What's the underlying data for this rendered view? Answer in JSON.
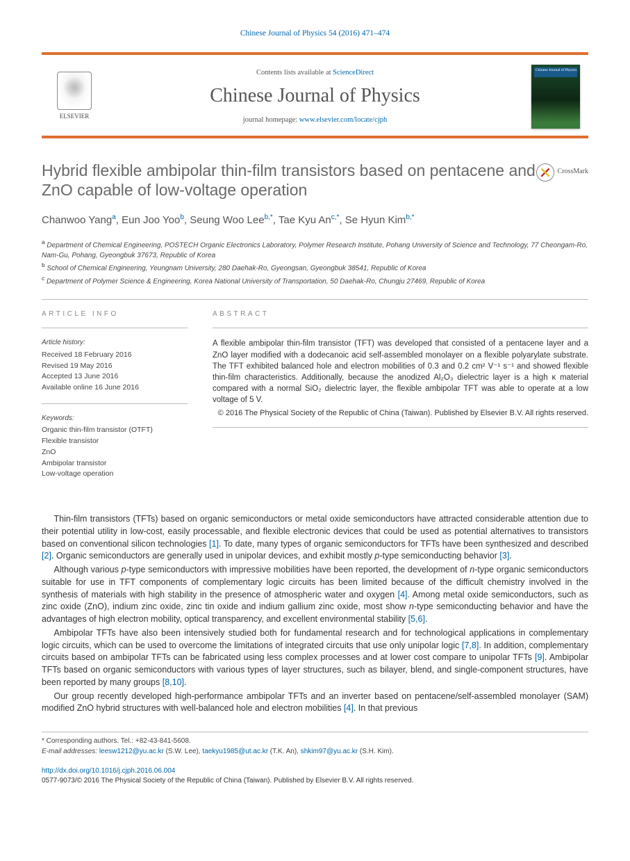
{
  "journal_ref": "Chinese Journal of Physics 54 (2016) 471–474",
  "masthead": {
    "publisher": "ELSEVIER",
    "contents_prefix": "Contents lists available at ",
    "contents_link": "ScienceDirect",
    "journal_name": "Chinese Journal of Physics",
    "homepage_prefix": "journal homepage: ",
    "homepage_url": "www.elsevier.com/locate/cjph",
    "cover_label": "Chinese Journal of Physics"
  },
  "crossmark_label": "CrossMark",
  "title": "Hybrid flexible ambipolar thin-film transistors based on pentacene and ZnO capable of low-voltage operation",
  "authors_html": "Chanwoo Yang<sup>a</sup>, Eun Joo Yoo<sup>b</sup>, Seung Woo Lee<sup>b,*</sup>, Tae Kyu An<sup>c,*</sup>, Se Hyun Kim<sup>b,*</sup>",
  "affiliations": [
    "a Department of Chemical Engineering, POSTECH Organic Electronics Laboratory, Polymer Research Institute, Pohang University of Science and Technology, 77 Cheongam-Ro, Nam-Gu, Pohang, Gyeongbuk 37673, Republic of Korea",
    "b School of Chemical Engineering, Yeungnam University, 280 Daehak-Ro, Gyeongsan, Gyeongbuk 38541, Republic of Korea",
    "c Department of Polymer Science & Engineering, Korea National University of Transportation, 50 Daehak-Ro, Chungju 27469, Republic of Korea"
  ],
  "article_info": {
    "heading": "ARTICLE INFO",
    "history_label": "Article history:",
    "history": [
      "Received 18 February 2016",
      "Revised 19 May 2016",
      "Accepted 13 June 2016",
      "Available online 16 June 2016"
    ],
    "keywords_label": "Keywords:",
    "keywords": [
      "Organic thin-film transistor (OTFT)",
      "Flexible transistor",
      "ZnO",
      "Ambipolar transistor",
      "Low-voltage operation"
    ]
  },
  "abstract": {
    "heading": "ABSTRACT",
    "text": "A flexible ambipolar thin-film transistor (TFT) was developed that consisted of a pentacene layer and a ZnO layer modified with a dodecanoic acid self-assembled monolayer on a flexible polyarylate substrate. The TFT exhibited balanced hole and electron mobilities of 0.3 and 0.2 cm² V⁻¹ s⁻¹ and showed flexible thin-film characteristics. Additionally, because the anodized Al₂O₃ dielectric layer is a high κ material compared with a normal SiO₂ dielectric layer, the flexible ambipolar TFT was able to operate at a low voltage of 5 V.",
    "copyright": "© 2016 The Physical Society of the Republic of China (Taiwan). Published by Elsevier B.V. All rights reserved."
  },
  "body": [
    "Thin-film transistors (TFTs) based on organic semiconductors or metal oxide semiconductors have attracted considerable attention due to their potential utility in low-cost, easily processable, and flexible electronic devices that could be used as potential alternatives to transistors based on conventional silicon technologies [1]. To date, many types of organic semiconductors for TFTs have been synthesized and described [2]. Organic semiconductors are generally used in unipolar devices, and exhibit mostly p-type semiconducting behavior [3].",
    "Although various p-type semiconductors with impressive mobilities have been reported, the development of n-type organic semiconductors suitable for use in TFT components of complementary logic circuits has been limited because of the difficult chemistry involved in the synthesis of materials with high stability in the presence of atmospheric water and oxygen [4]. Among metal oxide semiconductors, such as zinc oxide (ZnO), indium zinc oxide, zinc tin oxide and indium gallium zinc oxide, most show n-type semiconducting behavior and have the advantages of high electron mobility, optical transparency, and excellent environmental stability [5,6].",
    "Ambipolar TFTs have also been intensively studied both for fundamental research and for technological applications in complementary logic circuits, which can be used to overcome the limitations of integrated circuits that use only unipolar logic [7,8]. In addition, complementary circuits based on ambipolar TFTs can be fabricated using less complex processes and at lower cost compare to unipolar TFTs [9]. Ambipolar TFTs based on organic semiconductors with various types of layer structures, such as bilayer, blend, and single-component structures, have been reported by many groups [8,10].",
    "Our group recently developed high-performance ambipolar TFTs and an inverter based on pentacene/self-assembled monolayer (SAM) modified ZnO hybrid structures with well-balanced hole and electron mobilities [4]. In that previous"
  ],
  "footnotes": {
    "corr": "* Corresponding authors. Tel.: +82-43-841-5608.",
    "email_label": "E-mail addresses: ",
    "emails": [
      {
        "addr": "leesw1212@yu.ac.kr",
        "who": " (S.W. Lee), "
      },
      {
        "addr": "taekyu1985@ut.ac.kr",
        "who": " (T.K. An), "
      },
      {
        "addr": "shkim97@yu.ac.kr",
        "who": " (S.H. Kim)."
      }
    ]
  },
  "doi": {
    "url": "http://dx.doi.org/10.1016/j.cjph.2016.06.004",
    "issn_line": "0577-9073/© 2016 The Physical Society of the Republic of China (Taiwan). Published by Elsevier B.V. All rights reserved."
  },
  "colors": {
    "accent_bar": "#e07030",
    "link": "#0066aa",
    "heading_gray": "#696969",
    "text": "#333333",
    "muted": "#888888"
  }
}
